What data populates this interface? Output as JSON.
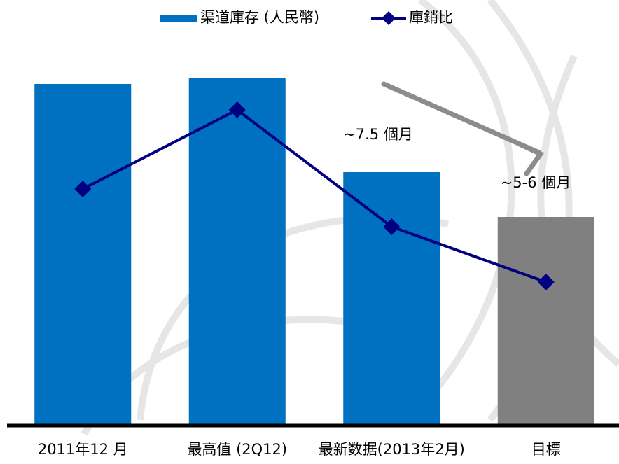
{
  "chart_data": {
    "type": "bar",
    "categories": [
      "2011年12 月",
      "最高值 (2Q12)",
      "最新数据(2013年2月)",
      "目標"
    ],
    "series": [
      {
        "name": "渠道庫存 (人民幣)",
        "type": "bar",
        "color": "#0070c0",
        "colors": [
          "#0070c0",
          "#0070c0",
          "#0070c0",
          "#808080"
        ],
        "values": [
          488,
          496,
          362,
          298
        ]
      },
      {
        "name": "庫銷比",
        "type": "line",
        "color": "#000080",
        "values": [
          338,
          451,
          284,
          205
        ]
      }
    ],
    "annotations": [
      "~7.5 個月",
      "~5-6 個月"
    ],
    "ylim": [
      0,
      500
    ],
    "legend": "top"
  }
}
